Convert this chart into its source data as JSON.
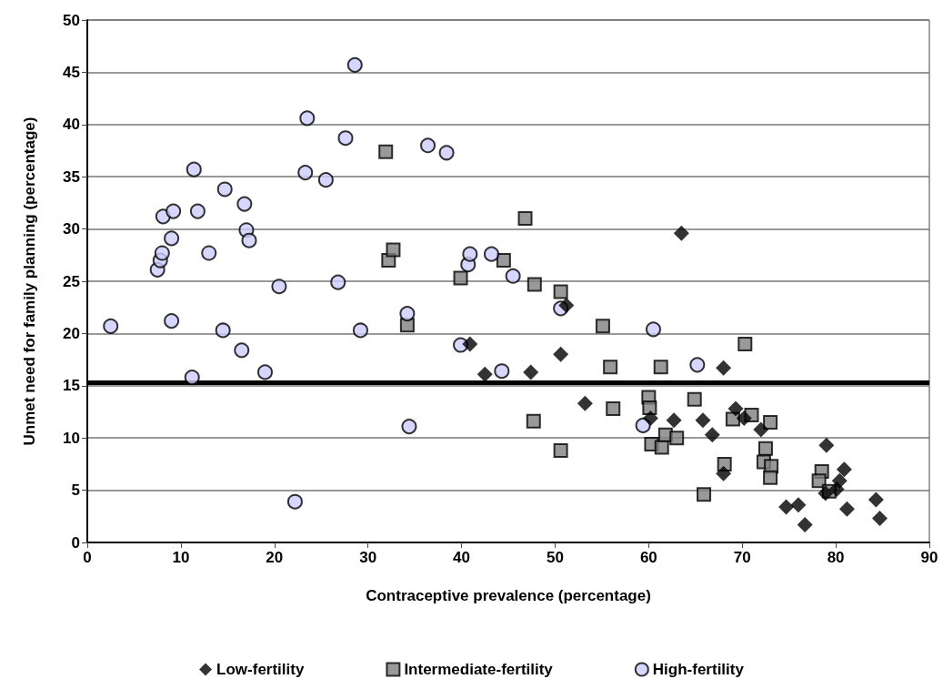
{
  "chart_data": {
    "type": "scatter",
    "xlabel": "Contraceptive prevalence (percentage)",
    "ylabel": "Unmet need for family planning (percentage)",
    "xlim": [
      0,
      90
    ],
    "xticks": [
      0,
      10,
      20,
      30,
      40,
      50,
      60,
      70,
      80,
      90
    ],
    "ylim": [
      0,
      50
    ],
    "yticks": [
      0,
      5,
      10,
      15,
      20,
      25,
      30,
      35,
      40,
      45,
      50
    ],
    "grid": "y",
    "legend": "bottom",
    "ref_lines": [
      {
        "axis": "y",
        "value": 15.3,
        "color": "#000000"
      }
    ],
    "series": [
      {
        "name": "Low-fertility",
        "color": "#000000",
        "marker": "diamond",
        "x": [
          40.9,
          42.5,
          47.4,
          50.6,
          51.2,
          63.5,
          53.2,
          68.0,
          60.2,
          62.7,
          65.8,
          66.8,
          69.3,
          70.2,
          72.0,
          68.0,
          79.0,
          80.9,
          80.4,
          80.1,
          78.9,
          74.7,
          76.0,
          76.7,
          81.2,
          84.3,
          84.7
        ],
        "values": [
          19.0,
          16.1,
          16.3,
          18.0,
          22.7,
          29.6,
          13.3,
          16.7,
          11.9,
          11.7,
          11.7,
          10.3,
          12.8,
          11.9,
          10.8,
          6.6,
          9.3,
          7.0,
          5.9,
          5.1,
          4.7,
          3.4,
          3.6,
          1.7,
          3.2,
          4.1,
          2.3
        ]
      },
      {
        "name": "Intermediate-fertility",
        "color": "#808080",
        "marker": "square",
        "x": [
          31.9,
          32.2,
          32.7,
          34.2,
          39.9,
          44.5,
          46.8,
          47.7,
          47.8,
          50.6,
          50.6,
          55.1,
          55.9,
          56.2,
          61.3,
          60.0,
          60.1,
          60.3,
          61.4,
          61.8,
          63.0,
          64.9,
          65.9,
          68.1,
          69.0,
          71.0,
          70.3,
          73.0,
          72.5,
          72.3,
          73.1,
          73.0,
          78.5,
          78.2,
          79.3
        ],
        "values": [
          37.4,
          27.0,
          28.0,
          20.8,
          25.3,
          27.0,
          31.0,
          11.6,
          24.7,
          24.0,
          8.8,
          20.7,
          16.8,
          12.8,
          16.8,
          13.9,
          12.9,
          9.4,
          9.1,
          10.3,
          10.0,
          13.7,
          4.6,
          7.5,
          11.8,
          12.2,
          19.0,
          11.5,
          9.0,
          7.7,
          7.3,
          6.2,
          6.8,
          5.9,
          4.9
        ]
      },
      {
        "name": "High-fertility",
        "color": "#ccccff",
        "marker": "circle",
        "x": [
          2.5,
          7.5,
          7.8,
          8.0,
          8.1,
          9.0,
          9.0,
          9.2,
          11.2,
          11.4,
          11.8,
          13.0,
          14.5,
          14.7,
          16.5,
          16.8,
          17.0,
          17.3,
          19.0,
          20.5,
          22.2,
          23.3,
          23.5,
          25.5,
          26.8,
          27.6,
          28.6,
          29.2,
          34.2,
          34.4,
          36.4,
          38.4,
          39.9,
          40.7,
          40.9,
          43.2,
          44.3,
          45.5,
          50.6,
          59.4,
          60.5,
          65.2
        ],
        "values": [
          20.7,
          26.1,
          27.0,
          27.7,
          31.2,
          21.2,
          29.1,
          31.7,
          15.8,
          35.7,
          31.7,
          27.7,
          20.3,
          33.8,
          18.4,
          32.4,
          29.9,
          28.9,
          16.3,
          24.5,
          3.9,
          35.4,
          40.6,
          34.7,
          24.9,
          38.7,
          45.7,
          20.3,
          21.9,
          11.1,
          38.0,
          37.3,
          18.9,
          26.6,
          27.6,
          27.6,
          16.4,
          25.5,
          22.4,
          11.2,
          20.4,
          17.0
        ]
      }
    ]
  }
}
